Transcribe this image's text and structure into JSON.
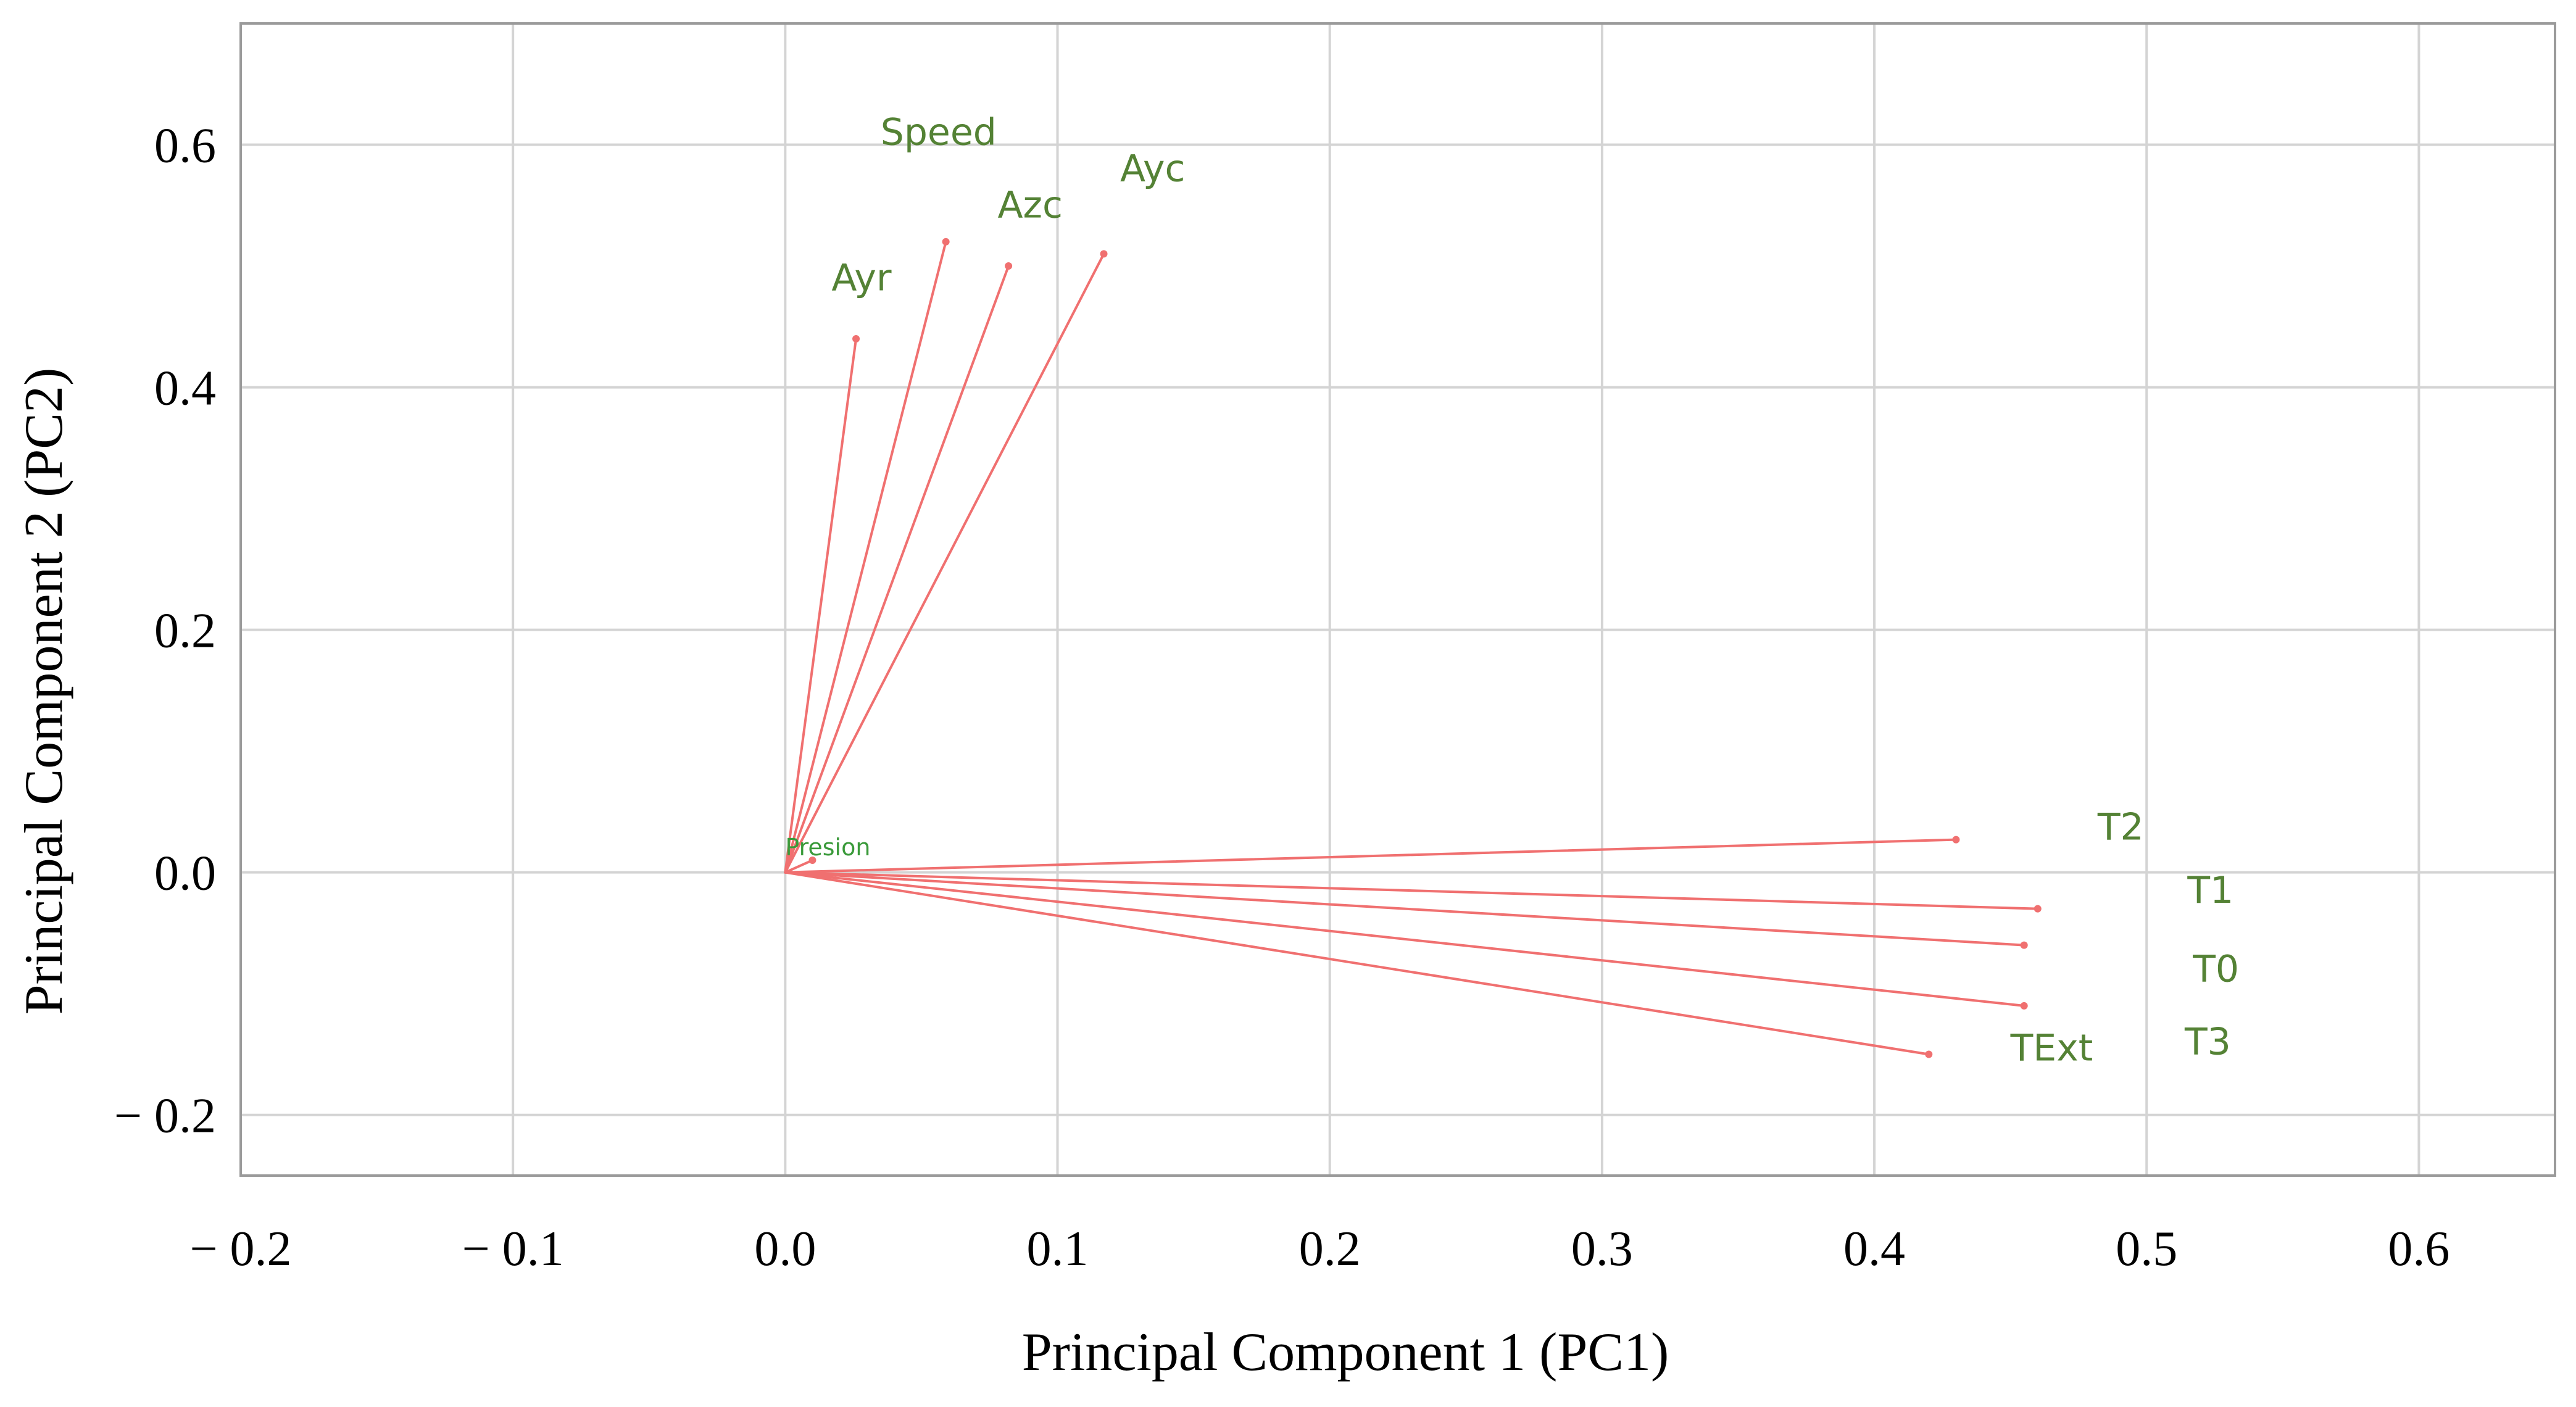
{
  "chart_data": {
    "type": "biplot-loadings",
    "xlabel": "Principal Component 1 (PC1)",
    "ylabel": "Principal Component 2 (PC2)",
    "xlim": [
      -0.2,
      0.65
    ],
    "ylim": [
      -0.25,
      0.7
    ],
    "xticks": [
      -0.2,
      -0.1,
      0.0,
      0.1,
      0.2,
      0.3,
      0.4,
      0.5,
      0.6
    ],
    "xtick_labels": [
      "− 0.2",
      "− 0.1",
      "0.0",
      "0.1",
      "0.2",
      "0.3",
      "0.4",
      "0.5",
      "0.6"
    ],
    "yticks": [
      -0.2,
      0.0,
      0.2,
      0.4,
      0.6
    ],
    "ytick_labels": [
      "− 0.2",
      "0.0",
      "0.2",
      "0.4",
      "0.6"
    ],
    "grid": true,
    "arrow_color": "#f07070",
    "label_color": "#548235",
    "vectors": [
      {
        "name": "Ayr",
        "x": 0.026,
        "y": 0.44,
        "lx": 0.017,
        "ly": 0.48
      },
      {
        "name": "Speed",
        "x": 0.059,
        "y": 0.52,
        "lx": 0.035,
        "ly": 0.6
      },
      {
        "name": "Azc",
        "x": 0.082,
        "y": 0.5,
        "lx": 0.078,
        "ly": 0.54
      },
      {
        "name": "Ayc",
        "x": 0.117,
        "y": 0.51,
        "lx": 0.123,
        "ly": 0.57
      },
      {
        "name": "T2",
        "x": 0.43,
        "y": 0.027,
        "lx": 0.482,
        "ly": 0.027
      },
      {
        "name": "T1",
        "x": 0.46,
        "y": -0.03,
        "lx": 0.515,
        "ly": -0.025
      },
      {
        "name": "T0",
        "x": 0.455,
        "y": -0.06,
        "lx": 0.517,
        "ly": -0.09
      },
      {
        "name": "T3",
        "x": 0.455,
        "y": -0.11,
        "lx": 0.514,
        "ly": -0.15
      },
      {
        "name": "TExt",
        "x": 0.42,
        "y": -0.15,
        "lx": 0.45,
        "ly": -0.155
      },
      {
        "name": "Presion",
        "x": 0.01,
        "y": 0.01,
        "lx": 0.0,
        "ly": 0.014,
        "small": true
      }
    ]
  }
}
